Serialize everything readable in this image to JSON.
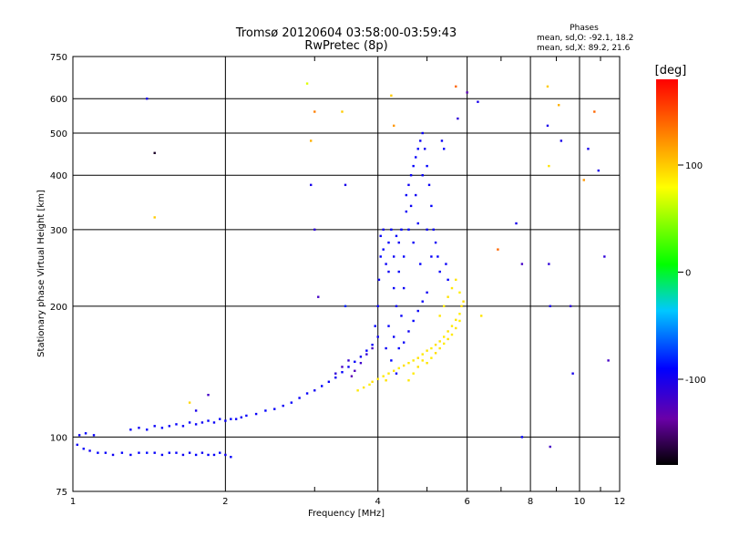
{
  "title": {
    "line1": "Tromsø 20120604 03:58:00-03:59:43",
    "line2": "RwPretec (8p)"
  },
  "phases_box": {
    "heading": "Phases",
    "line_o": "mean, sd,O: -92.1, 18.2",
    "line_x": "mean, sd,X:  89.2, 21.6"
  },
  "chart_data": {
    "type": "scatter",
    "xlabel": "Frequency [MHz]",
    "ylabel": "Stationary phase Virtual Height [km]",
    "xscale": "log",
    "yscale": "log",
    "xlim": [
      1,
      12
    ],
    "ylim": [
      75,
      750
    ],
    "xticks": [
      1,
      2,
      4,
      6,
      8,
      10,
      12
    ],
    "yticks": [
      75,
      100,
      200,
      300,
      400,
      500,
      600,
      750
    ],
    "grid": true,
    "colorbar": {
      "label": "[deg]",
      "range": [
        -180,
        180
      ],
      "ticks": [
        100,
        0,
        -100
      ],
      "colormap": "rainbow"
    },
    "phase_stats": {
      "O": {
        "mean": -92.1,
        "sd": 18.2
      },
      "X": {
        "mean": 89.2,
        "sd": 21.6
      }
    },
    "series": [
      {
        "mode": "O",
        "points": [
          [
            1.02,
            96,
            -95
          ],
          [
            1.05,
            94,
            -92
          ],
          [
            1.08,
            93,
            -97
          ],
          [
            1.12,
            92,
            -90
          ],
          [
            1.16,
            92,
            -93
          ],
          [
            1.2,
            91,
            -96
          ],
          [
            1.25,
            92,
            -91
          ],
          [
            1.3,
            91,
            -94
          ],
          [
            1.35,
            92,
            -92
          ],
          [
            1.4,
            92,
            -88
          ],
          [
            1.45,
            92,
            -93
          ],
          [
            1.5,
            91,
            -95
          ],
          [
            1.55,
            92,
            -90
          ],
          [
            1.6,
            92,
            -92
          ],
          [
            1.65,
            91,
            -97
          ],
          [
            1.7,
            92,
            -93
          ],
          [
            1.75,
            91,
            -90
          ],
          [
            1.8,
            92,
            -95
          ],
          [
            1.85,
            91,
            -92
          ],
          [
            1.9,
            91,
            -94
          ],
          [
            1.95,
            92,
            -89
          ],
          [
            2.0,
            91,
            -96
          ],
          [
            2.05,
            90,
            -92
          ],
          [
            1.03,
            101,
            -94
          ],
          [
            1.06,
            102,
            -91
          ],
          [
            1.1,
            101,
            -93
          ],
          [
            1.3,
            104,
            -92
          ],
          [
            1.35,
            105,
            -95
          ],
          [
            1.4,
            104,
            -90
          ],
          [
            1.45,
            106,
            -94
          ],
          [
            1.5,
            105,
            -91
          ],
          [
            1.55,
            106,
            -95
          ],
          [
            1.6,
            107,
            -92
          ],
          [
            1.65,
            106,
            -94
          ],
          [
            1.7,
            108,
            -90
          ],
          [
            1.75,
            107,
            -93
          ],
          [
            1.8,
            108,
            -96
          ],
          [
            1.85,
            109,
            -91
          ],
          [
            1.9,
            108,
            -94
          ],
          [
            1.95,
            110,
            -92
          ],
          [
            2.0,
            109,
            -95
          ],
          [
            2.05,
            110,
            -90
          ],
          [
            2.1,
            110,
            -93
          ],
          [
            2.15,
            111,
            -96
          ],
          [
            2.2,
            112,
            -92
          ],
          [
            2.3,
            113,
            -94
          ],
          [
            2.4,
            115,
            -90
          ],
          [
            2.5,
            116,
            -93
          ],
          [
            2.6,
            118,
            -95
          ],
          [
            2.7,
            120,
            -91
          ],
          [
            2.8,
            123,
            -94
          ],
          [
            2.9,
            126,
            -92
          ],
          [
            3.0,
            128,
            -96
          ],
          [
            3.1,
            131,
            -90
          ],
          [
            3.2,
            134,
            -93
          ],
          [
            3.3,
            137,
            -95
          ],
          [
            3.4,
            141,
            -91
          ],
          [
            3.5,
            145,
            -94
          ],
          [
            3.6,
            149,
            -92
          ],
          [
            3.7,
            153,
            -96
          ],
          [
            3.8,
            158,
            -90
          ],
          [
            3.9,
            163,
            -93
          ],
          [
            4.0,
            170,
            -95
          ],
          [
            3.3,
            140,
            -110
          ],
          [
            3.4,
            145,
            -120
          ],
          [
            3.5,
            150,
            -115
          ],
          [
            3.6,
            142,
            -125
          ],
          [
            3.7,
            148,
            -118
          ],
          [
            3.8,
            155,
            -112
          ],
          [
            3.9,
            160,
            -120
          ],
          [
            3.55,
            138,
            -130
          ],
          [
            3.95,
            180,
            -90
          ],
          [
            4.0,
            200,
            -92
          ],
          [
            4.02,
            230,
            -95
          ],
          [
            4.05,
            260,
            -90
          ],
          [
            4.05,
            290,
            -93
          ],
          [
            4.1,
            300,
            -96
          ],
          [
            4.1,
            270,
            -91
          ],
          [
            4.15,
            250,
            -94
          ],
          [
            4.2,
            280,
            -92
          ],
          [
            4.2,
            240,
            -96
          ],
          [
            4.25,
            300,
            -90
          ],
          [
            4.3,
            220,
            -93
          ],
          [
            4.3,
            260,
            -95
          ],
          [
            4.35,
            290,
            -91
          ],
          [
            4.35,
            200,
            -94
          ],
          [
            4.4,
            240,
            -92
          ],
          [
            4.4,
            280,
            -96
          ],
          [
            4.45,
            300,
            -90
          ],
          [
            4.45,
            190,
            -93
          ],
          [
            4.5,
            220,
            -95
          ],
          [
            4.5,
            260,
            -91
          ],
          [
            4.55,
            330,
            -94
          ],
          [
            4.55,
            360,
            -92
          ],
          [
            4.6,
            380,
            -96
          ],
          [
            4.6,
            300,
            -90
          ],
          [
            4.65,
            400,
            -93
          ],
          [
            4.65,
            340,
            -95
          ],
          [
            4.7,
            420,
            -91
          ],
          [
            4.7,
            280,
            -94
          ],
          [
            4.75,
            440,
            -92
          ],
          [
            4.75,
            360,
            -96
          ],
          [
            4.8,
            460,
            -90
          ],
          [
            4.8,
            310,
            -93
          ],
          [
            4.85,
            480,
            -95
          ],
          [
            4.85,
            250,
            -91
          ],
          [
            4.9,
            500,
            -94
          ],
          [
            4.9,
            400,
            -92
          ],
          [
            4.95,
            460,
            -96
          ],
          [
            5.0,
            420,
            -90
          ],
          [
            5.0,
            300,
            -93
          ],
          [
            5.05,
            380,
            -95
          ],
          [
            5.1,
            340,
            -91
          ],
          [
            5.1,
            260,
            -94
          ],
          [
            5.15,
            300,
            -92
          ],
          [
            5.2,
            280,
            -96
          ],
          [
            5.25,
            260,
            -90
          ],
          [
            5.3,
            240,
            -93
          ],
          [
            5.35,
            480,
            -95
          ],
          [
            5.4,
            460,
            -91
          ],
          [
            5.45,
            250,
            -94
          ],
          [
            5.5,
            230,
            -92
          ],
          [
            4.2,
            180,
            -92
          ],
          [
            4.3,
            170,
            -95
          ],
          [
            4.4,
            160,
            -90
          ],
          [
            4.5,
            165,
            -93
          ],
          [
            4.6,
            175,
            -96
          ],
          [
            4.7,
            185,
            -91
          ],
          [
            4.8,
            195,
            -94
          ],
          [
            4.9,
            205,
            -92
          ],
          [
            5.0,
            215,
            -96
          ],
          [
            4.25,
            150,
            -90
          ],
          [
            4.35,
            140,
            -93
          ],
          [
            4.15,
            160,
            -95
          ]
        ]
      },
      {
        "mode": "X",
        "points": [
          [
            3.65,
            128,
            88
          ],
          [
            3.75,
            130,
            90
          ],
          [
            3.85,
            132,
            85
          ],
          [
            3.9,
            134,
            92
          ],
          [
            4.0,
            136,
            89
          ],
          [
            4.1,
            138,
            87
          ],
          [
            4.15,
            135,
            91
          ],
          [
            4.2,
            140,
            88
          ],
          [
            4.3,
            142,
            90
          ],
          [
            4.4,
            144,
            86
          ],
          [
            4.5,
            146,
            92
          ],
          [
            4.6,
            148,
            89
          ],
          [
            4.7,
            150,
            87
          ],
          [
            4.8,
            152,
            91
          ],
          [
            4.9,
            155,
            88
          ],
          [
            5.0,
            158,
            90
          ],
          [
            5.1,
            160,
            86
          ],
          [
            5.2,
            163,
            92
          ],
          [
            5.3,
            166,
            89
          ],
          [
            5.4,
            170,
            87
          ],
          [
            5.5,
            175,
            91
          ],
          [
            5.6,
            180,
            88
          ],
          [
            5.7,
            186,
            90
          ],
          [
            5.8,
            192,
            86
          ],
          [
            5.85,
            200,
            92
          ],
          [
            4.6,
            135,
            89
          ],
          [
            4.7,
            140,
            87
          ],
          [
            4.8,
            145,
            91
          ],
          [
            4.9,
            150,
            88
          ],
          [
            5.0,
            148,
            90
          ],
          [
            5.1,
            152,
            86
          ],
          [
            5.2,
            156,
            92
          ],
          [
            5.3,
            160,
            89
          ],
          [
            5.4,
            164,
            87
          ],
          [
            5.5,
            168,
            91
          ],
          [
            5.6,
            172,
            88
          ],
          [
            5.7,
            178,
            90
          ],
          [
            5.8,
            185,
            86
          ],
          [
            5.3,
            190,
            89
          ],
          [
            5.4,
            200,
            87
          ],
          [
            5.5,
            210,
            91
          ],
          [
            5.6,
            220,
            88
          ],
          [
            5.7,
            230,
            90
          ],
          [
            5.8,
            215,
            86
          ],
          [
            5.9,
            205,
            92
          ]
        ]
      },
      {
        "mode": "scattered",
        "points": [
          [
            1.4,
            600,
            -100
          ],
          [
            1.45,
            450,
            -170
          ],
          [
            1.45,
            320,
            100
          ],
          [
            1.7,
            120,
            95
          ],
          [
            1.75,
            115,
            -100
          ],
          [
            1.85,
            125,
            -120
          ],
          [
            2.9,
            650,
            70
          ],
          [
            2.95,
            480,
            110
          ],
          [
            3.0,
            560,
            130
          ],
          [
            2.95,
            380,
            -100
          ],
          [
            3.0,
            300,
            -110
          ],
          [
            3.05,
            210,
            -120
          ],
          [
            3.4,
            560,
            100
          ],
          [
            3.45,
            380,
            -100
          ],
          [
            3.45,
            200,
            -80
          ],
          [
            4.25,
            610,
            100
          ],
          [
            4.3,
            520,
            120
          ],
          [
            5.7,
            640,
            140
          ],
          [
            6.0,
            620,
            -130
          ],
          [
            5.75,
            540,
            -110
          ],
          [
            6.3,
            590,
            -100
          ],
          [
            6.4,
            190,
            90
          ],
          [
            6.9,
            270,
            140
          ],
          [
            7.5,
            310,
            -100
          ],
          [
            7.7,
            250,
            -120
          ],
          [
            7.7,
            100,
            -90
          ],
          [
            8.65,
            640,
            100
          ],
          [
            8.65,
            520,
            -100
          ],
          [
            8.7,
            420,
            90
          ],
          [
            8.7,
            250,
            -110
          ],
          [
            8.75,
            200,
            -100
          ],
          [
            8.75,
            95,
            -120
          ],
          [
            9.1,
            580,
            110
          ],
          [
            9.2,
            480,
            -100
          ],
          [
            9.6,
            200,
            -110
          ],
          [
            9.7,
            140,
            -100
          ],
          [
            10.2,
            390,
            120
          ],
          [
            10.4,
            460,
            -100
          ],
          [
            10.7,
            560,
            140
          ],
          [
            10.9,
            410,
            -100
          ],
          [
            11.2,
            260,
            -110
          ],
          [
            11.4,
            150,
            -120
          ]
        ]
      }
    ]
  }
}
